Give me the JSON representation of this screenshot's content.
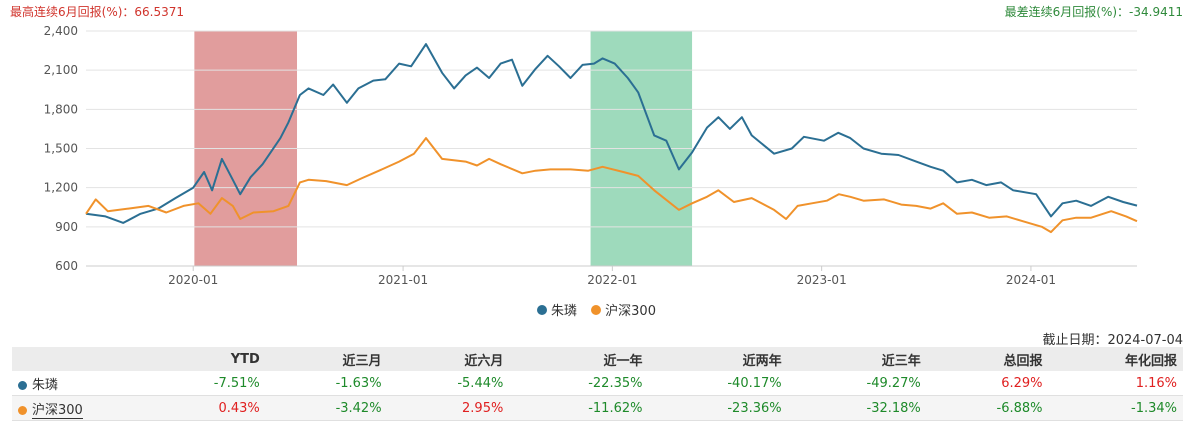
{
  "header": {
    "best_label": "最高连续6月回报(%)：66.5371",
    "worst_label": "最差连续6月回报(%)：-34.9411"
  },
  "colors": {
    "fund": "#2b6f93",
    "index": "#f0922b",
    "best_band": "#d98585",
    "worst_band": "#86d1ab"
  },
  "chart_data": {
    "type": "line",
    "title": "",
    "xlabel": "",
    "ylabel": "",
    "x_range": [
      "2019-06-28",
      "2024-07-04"
    ],
    "ylim": [
      600,
      2400
    ],
    "yticks": [
      "600",
      "900",
      "1,200",
      "1,500",
      "1,800",
      "2,100",
      "2,400"
    ],
    "xticks": [
      {
        "date": "2020-01-01",
        "label": "2020-01"
      },
      {
        "date": "2021-01-01",
        "label": "2021-01"
      },
      {
        "date": "2022-01-01",
        "label": "2022-01"
      },
      {
        "date": "2023-01-01",
        "label": "2023-01"
      },
      {
        "date": "2024-01-01",
        "label": "2024-01"
      }
    ],
    "grid": true,
    "legend_position": "bottom",
    "bands": [
      {
        "from": "2020-01-03",
        "to": "2020-06-30",
        "kind": "best"
      },
      {
        "from": "2021-11-24",
        "to": "2022-05-20",
        "kind": "worst"
      }
    ],
    "series": [
      {
        "name": "朱璘",
        "points": [
          [
            "2019-06-28",
            1000
          ],
          [
            "2019-08-01",
            980
          ],
          [
            "2019-09-01",
            930
          ],
          [
            "2019-10-01",
            1000
          ],
          [
            "2019-11-01",
            1040
          ],
          [
            "2019-12-01",
            1120
          ],
          [
            "2020-01-01",
            1200
          ],
          [
            "2020-01-20",
            1320
          ],
          [
            "2020-02-03",
            1180
          ],
          [
            "2020-02-20",
            1420
          ],
          [
            "2020-03-10",
            1260
          ],
          [
            "2020-03-23",
            1150
          ],
          [
            "2020-04-10",
            1280
          ],
          [
            "2020-05-01",
            1380
          ],
          [
            "2020-06-01",
            1580
          ],
          [
            "2020-06-15",
            1700
          ],
          [
            "2020-07-05",
            1910
          ],
          [
            "2020-07-20",
            1960
          ],
          [
            "2020-08-15",
            1910
          ],
          [
            "2020-09-01",
            1990
          ],
          [
            "2020-09-25",
            1850
          ],
          [
            "2020-10-15",
            1960
          ],
          [
            "2020-11-10",
            2020
          ],
          [
            "2020-12-01",
            2030
          ],
          [
            "2020-12-25",
            2150
          ],
          [
            "2021-01-15",
            2130
          ],
          [
            "2021-02-10",
            2300
          ],
          [
            "2021-03-10",
            2080
          ],
          [
            "2021-03-31",
            1960
          ],
          [
            "2021-04-20",
            2060
          ],
          [
            "2021-05-10",
            2120
          ],
          [
            "2021-05-31",
            2040
          ],
          [
            "2021-06-20",
            2150
          ],
          [
            "2021-07-10",
            2180
          ],
          [
            "2021-07-28",
            1980
          ],
          [
            "2021-08-20",
            2110
          ],
          [
            "2021-09-10",
            2210
          ],
          [
            "2021-09-30",
            2130
          ],
          [
            "2021-10-20",
            2040
          ],
          [
            "2021-11-10",
            2140
          ],
          [
            "2021-11-30",
            2150
          ],
          [
            "2021-12-15",
            2190
          ],
          [
            "2022-01-05",
            2150
          ],
          [
            "2022-01-28",
            2040
          ],
          [
            "2022-02-15",
            1930
          ],
          [
            "2022-03-15",
            1600
          ],
          [
            "2022-04-05",
            1560
          ],
          [
            "2022-04-27",
            1340
          ],
          [
            "2022-05-20",
            1470
          ],
          [
            "2022-06-15",
            1660
          ],
          [
            "2022-07-05",
            1740
          ],
          [
            "2022-07-25",
            1650
          ],
          [
            "2022-08-15",
            1740
          ],
          [
            "2022-09-01",
            1600
          ],
          [
            "2022-10-10",
            1460
          ],
          [
            "2022-11-10",
            1500
          ],
          [
            "2022-12-01",
            1590
          ],
          [
            "2023-01-05",
            1560
          ],
          [
            "2023-01-30",
            1620
          ],
          [
            "2023-02-20",
            1580
          ],
          [
            "2023-03-15",
            1500
          ],
          [
            "2023-04-15",
            1460
          ],
          [
            "2023-05-15",
            1450
          ],
          [
            "2023-06-15",
            1400
          ],
          [
            "2023-07-10",
            1360
          ],
          [
            "2023-08-01",
            1330
          ],
          [
            "2023-08-25",
            1240
          ],
          [
            "2023-09-20",
            1260
          ],
          [
            "2023-10-15",
            1220
          ],
          [
            "2023-11-10",
            1240
          ],
          [
            "2023-12-01",
            1180
          ],
          [
            "2024-01-10",
            1150
          ],
          [
            "2024-02-05",
            980
          ],
          [
            "2024-02-25",
            1080
          ],
          [
            "2024-03-20",
            1100
          ],
          [
            "2024-04-15",
            1060
          ],
          [
            "2024-05-15",
            1130
          ],
          [
            "2024-06-10",
            1090
          ],
          [
            "2024-07-04",
            1063
          ]
        ]
      },
      {
        "name": "沪深300",
        "points": [
          [
            "2019-06-28",
            1000
          ],
          [
            "2019-07-15",
            1110
          ],
          [
            "2019-08-05",
            1020
          ],
          [
            "2019-09-10",
            1040
          ],
          [
            "2019-10-15",
            1060
          ],
          [
            "2019-11-15",
            1010
          ],
          [
            "2019-12-15",
            1060
          ],
          [
            "2020-01-10",
            1080
          ],
          [
            "2020-01-31",
            1000
          ],
          [
            "2020-02-20",
            1120
          ],
          [
            "2020-03-10",
            1060
          ],
          [
            "2020-03-23",
            960
          ],
          [
            "2020-04-15",
            1010
          ],
          [
            "2020-05-20",
            1020
          ],
          [
            "2020-06-15",
            1060
          ],
          [
            "2020-07-05",
            1240
          ],
          [
            "2020-07-20",
            1260
          ],
          [
            "2020-08-20",
            1250
          ],
          [
            "2020-09-25",
            1220
          ],
          [
            "2020-10-20",
            1270
          ],
          [
            "2020-11-20",
            1330
          ],
          [
            "2020-12-25",
            1400
          ],
          [
            "2021-01-20",
            1460
          ],
          [
            "2021-02-10",
            1580
          ],
          [
            "2021-03-10",
            1420
          ],
          [
            "2021-04-20",
            1400
          ],
          [
            "2021-05-10",
            1370
          ],
          [
            "2021-05-31",
            1420
          ],
          [
            "2021-06-20",
            1380
          ],
          [
            "2021-07-28",
            1310
          ],
          [
            "2021-08-20",
            1330
          ],
          [
            "2021-09-15",
            1340
          ],
          [
            "2021-10-20",
            1340
          ],
          [
            "2021-11-20",
            1330
          ],
          [
            "2021-12-15",
            1360
          ],
          [
            "2022-01-20",
            1320
          ],
          [
            "2022-02-15",
            1290
          ],
          [
            "2022-03-15",
            1180
          ],
          [
            "2022-04-27",
            1030
          ],
          [
            "2022-05-20",
            1080
          ],
          [
            "2022-06-15",
            1130
          ],
          [
            "2022-07-05",
            1180
          ],
          [
            "2022-08-01",
            1090
          ],
          [
            "2022-09-01",
            1120
          ],
          [
            "2022-10-10",
            1030
          ],
          [
            "2022-10-31",
            960
          ],
          [
            "2022-11-20",
            1060
          ],
          [
            "2022-12-15",
            1080
          ],
          [
            "2023-01-10",
            1100
          ],
          [
            "2023-01-31",
            1150
          ],
          [
            "2023-02-20",
            1130
          ],
          [
            "2023-03-15",
            1100
          ],
          [
            "2023-04-20",
            1110
          ],
          [
            "2023-05-20",
            1070
          ],
          [
            "2023-06-15",
            1060
          ],
          [
            "2023-07-10",
            1040
          ],
          [
            "2023-08-01",
            1080
          ],
          [
            "2023-08-25",
            1000
          ],
          [
            "2023-09-20",
            1010
          ],
          [
            "2023-10-20",
            970
          ],
          [
            "2023-11-20",
            980
          ],
          [
            "2023-12-20",
            940
          ],
          [
            "2024-01-20",
            900
          ],
          [
            "2024-02-05",
            860
          ],
          [
            "2024-02-25",
            950
          ],
          [
            "2024-03-20",
            970
          ],
          [
            "2024-04-15",
            970
          ],
          [
            "2024-05-20",
            1020
          ],
          [
            "2024-06-15",
            980
          ],
          [
            "2024-07-04",
            943
          ]
        ]
      }
    ]
  },
  "legend": {
    "fund_label": "朱璘",
    "index_label": "沪深300"
  },
  "asof_label": "截止日期：2024-07-04",
  "table": {
    "headers": [
      "",
      "YTD",
      "近三月",
      "近六月",
      "近一年",
      "近两年",
      "近三年",
      "总回报",
      "年化回报"
    ],
    "rows": [
      {
        "name": "朱璘",
        "values": [
          "-7.51%",
          "-1.63%",
          "-5.44%",
          "-22.35%",
          "-40.17%",
          "-49.27%",
          "6.29%",
          "1.16%"
        ]
      },
      {
        "name": "沪深300",
        "values": [
          "0.43%",
          "-3.42%",
          "2.95%",
          "-11.62%",
          "-23.36%",
          "-32.18%",
          "-6.88%",
          "-1.34%"
        ]
      }
    ]
  }
}
